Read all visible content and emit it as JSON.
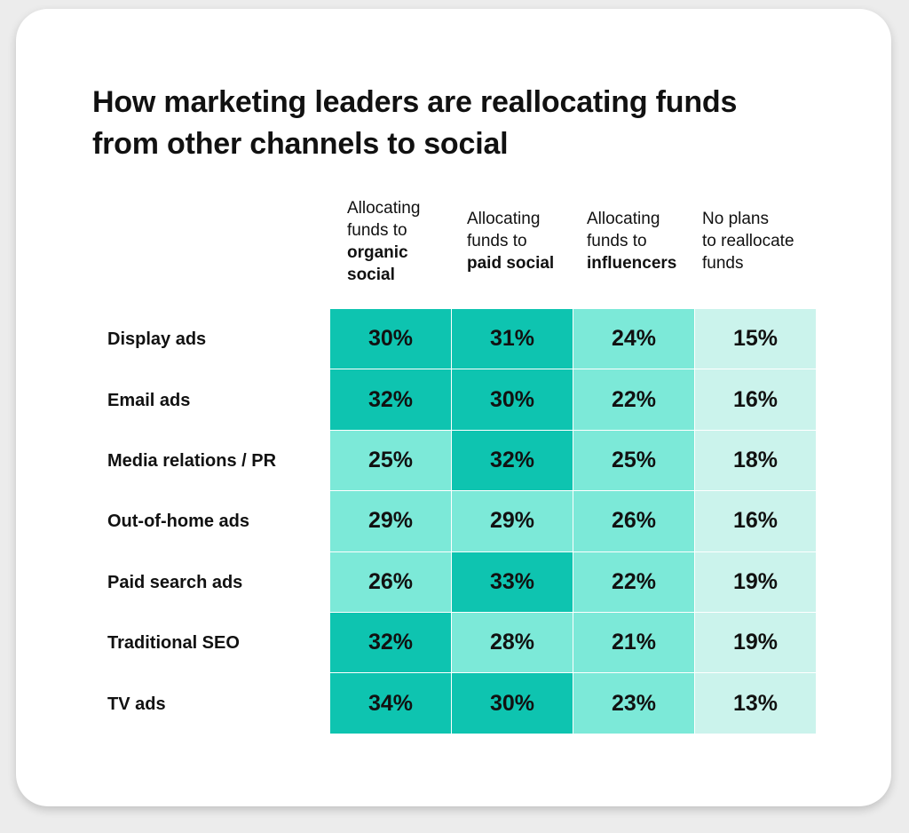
{
  "chart_data": {
    "type": "table",
    "title": "How marketing leaders are reallocating funds from other channels to social",
    "title_lines": [
      "How marketing leaders are reallocating funds",
      "from other channels to social"
    ],
    "columns": [
      {
        "lines": [
          {
            "text": "Allocating",
            "bold": false
          },
          {
            "text": "funds to",
            "bold": false
          },
          {
            "text": "organic",
            "bold": true
          },
          {
            "text": "social",
            "bold": true
          }
        ]
      },
      {
        "lines": [
          {
            "text": "Allocating",
            "bold": false
          },
          {
            "text": "funds to",
            "bold": false
          },
          {
            "text": "paid social",
            "bold": true
          }
        ]
      },
      {
        "lines": [
          {
            "text": "Allocating",
            "bold": false
          },
          {
            "text": "funds to",
            "bold": false
          },
          {
            "text": "influencers",
            "bold": true
          }
        ]
      },
      {
        "lines": [
          {
            "text": "No plans",
            "bold": false
          },
          {
            "text": "to reallocate",
            "bold": false
          },
          {
            "text": "funds",
            "bold": false
          }
        ]
      }
    ],
    "rows": [
      "Display ads",
      "Email ads",
      "Media relations / PR",
      "Out-of-home ads",
      "Paid search ads",
      "Traditional SEO",
      "TV ads"
    ],
    "values": [
      [
        30,
        31,
        24,
        15
      ],
      [
        32,
        30,
        22,
        16
      ],
      [
        25,
        32,
        25,
        18
      ],
      [
        29,
        29,
        26,
        16
      ],
      [
        26,
        33,
        22,
        19
      ],
      [
        32,
        28,
        21,
        19
      ],
      [
        34,
        30,
        23,
        13
      ]
    ],
    "unit": "%",
    "colors": {
      "high": "#0ec4b0",
      "mid": "#7ce9d8",
      "low": "#cbf3ec"
    }
  }
}
